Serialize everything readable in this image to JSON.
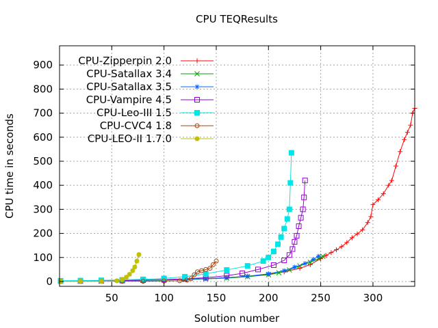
{
  "chart_data": {
    "type": "scatter",
    "title": "CPU TEQResults",
    "xlabel": "Solution number",
    "ylabel": "CPU time in seconds",
    "xlim": [
      0,
      340
    ],
    "ylim": [
      -20,
      980
    ],
    "xticks": [
      50,
      100,
      150,
      200,
      250,
      300
    ],
    "yticks": [
      0,
      100,
      200,
      300,
      400,
      500,
      600,
      700,
      800,
      900
    ],
    "grid": true,
    "legend_position": "top-left",
    "series": [
      {
        "name": "CPU-Zipperpin 2.0",
        "color": "#ff0000",
        "marker": "plus",
        "points": [
          [
            1,
            2
          ],
          [
            20,
            2
          ],
          [
            40,
            3
          ],
          [
            60,
            4
          ],
          [
            80,
            5
          ],
          [
            100,
            7
          ],
          [
            120,
            9
          ],
          [
            140,
            12
          ],
          [
            160,
            16
          ],
          [
            180,
            22
          ],
          [
            200,
            30
          ],
          [
            215,
            40
          ],
          [
            230,
            55
          ],
          [
            240,
            70
          ],
          [
            250,
            95
          ],
          [
            255,
            108
          ],
          [
            260,
            120
          ],
          [
            265,
            132
          ],
          [
            270,
            145
          ],
          [
            275,
            162
          ],
          [
            280,
            182
          ],
          [
            285,
            198
          ],
          [
            290,
            215
          ],
          [
            295,
            245
          ],
          [
            298,
            270
          ],
          [
            300,
            320
          ],
          [
            305,
            340
          ],
          [
            310,
            365
          ],
          [
            315,
            400
          ],
          [
            318,
            420
          ],
          [
            322,
            480
          ],
          [
            326,
            540
          ],
          [
            330,
            590
          ],
          [
            333,
            620
          ],
          [
            336,
            650
          ],
          [
            338,
            700
          ],
          [
            340,
            720
          ]
        ]
      },
      {
        "name": "CPU-Satallax 3.4",
        "color": "#009e00",
        "marker": "cross",
        "points": [
          [
            1,
            2
          ],
          [
            20,
            2
          ],
          [
            40,
            3
          ],
          [
            60,
            4
          ],
          [
            80,
            5
          ],
          [
            100,
            6
          ],
          [
            120,
            8
          ],
          [
            140,
            11
          ],
          [
            160,
            14
          ],
          [
            180,
            20
          ],
          [
            200,
            28
          ],
          [
            210,
            36
          ],
          [
            220,
            48
          ],
          [
            230,
            65
          ],
          [
            240,
            80
          ],
          [
            248,
            95
          ],
          [
            252,
            105
          ]
        ]
      },
      {
        "name": "CPU-Satallax 3.5",
        "color": "#0066ff",
        "marker": "star",
        "points": [
          [
            1,
            2
          ],
          [
            20,
            2
          ],
          [
            40,
            3
          ],
          [
            60,
            4
          ],
          [
            80,
            5
          ],
          [
            100,
            7
          ],
          [
            120,
            9
          ],
          [
            140,
            12
          ],
          [
            160,
            16
          ],
          [
            180,
            22
          ],
          [
            200,
            32
          ],
          [
            215,
            45
          ],
          [
            225,
            60
          ],
          [
            235,
            75
          ],
          [
            243,
            92
          ],
          [
            248,
            105
          ]
        ]
      },
      {
        "name": "CPU-Vampire 4.5",
        "color": "#9400d3",
        "marker": "square",
        "points": [
          [
            1,
            2
          ],
          [
            20,
            2
          ],
          [
            40,
            3
          ],
          [
            60,
            4
          ],
          [
            80,
            6
          ],
          [
            100,
            8
          ],
          [
            120,
            11
          ],
          [
            140,
            16
          ],
          [
            160,
            24
          ],
          [
            175,
            34
          ],
          [
            190,
            50
          ],
          [
            205,
            68
          ],
          [
            215,
            88
          ],
          [
            220,
            110
          ],
          [
            223,
            135
          ],
          [
            225,
            165
          ],
          [
            227,
            190
          ],
          [
            229,
            230
          ],
          [
            231,
            265
          ],
          [
            233,
            300
          ],
          [
            234,
            350
          ],
          [
            235,
            420
          ]
        ]
      },
      {
        "name": "CPU-Leo-III 1.5",
        "color": "#00e5e5",
        "marker": "filled-square",
        "points": [
          [
            1,
            3
          ],
          [
            20,
            4
          ],
          [
            40,
            5
          ],
          [
            60,
            7
          ],
          [
            80,
            9
          ],
          [
            100,
            13
          ],
          [
            120,
            20
          ],
          [
            140,
            32
          ],
          [
            160,
            48
          ],
          [
            180,
            65
          ],
          [
            195,
            85
          ],
          [
            200,
            100
          ],
          [
            205,
            125
          ],
          [
            209,
            155
          ],
          [
            212,
            185
          ],
          [
            215,
            220
          ],
          [
            218,
            260
          ],
          [
            220,
            300
          ],
          [
            221,
            410
          ],
          [
            222,
            535
          ]
        ]
      },
      {
        "name": "CPU-CVC4 1.8",
        "color": "#a5410c",
        "marker": "circle",
        "points": [
          [
            1,
            1
          ],
          [
            20,
            1
          ],
          [
            40,
            1
          ],
          [
            60,
            1
          ],
          [
            80,
            1
          ],
          [
            100,
            2
          ],
          [
            115,
            3
          ],
          [
            122,
            6
          ],
          [
            126,
            12
          ],
          [
            129,
            28
          ],
          [
            132,
            40
          ],
          [
            136,
            45
          ],
          [
            140,
            50
          ],
          [
            144,
            55
          ],
          [
            147,
            70
          ],
          [
            150,
            85
          ]
        ]
      },
      {
        "name": "CPU-LEO-II 1.7.0",
        "color": "#c0c000",
        "marker": "filled-star",
        "points": [
          [
            1,
            1
          ],
          [
            20,
            1
          ],
          [
            40,
            1
          ],
          [
            55,
            3
          ],
          [
            60,
            8
          ],
          [
            64,
            18
          ],
          [
            67,
            30
          ],
          [
            70,
            45
          ],
          [
            72,
            60
          ],
          [
            74,
            85
          ],
          [
            76,
            112
          ]
        ]
      }
    ]
  }
}
